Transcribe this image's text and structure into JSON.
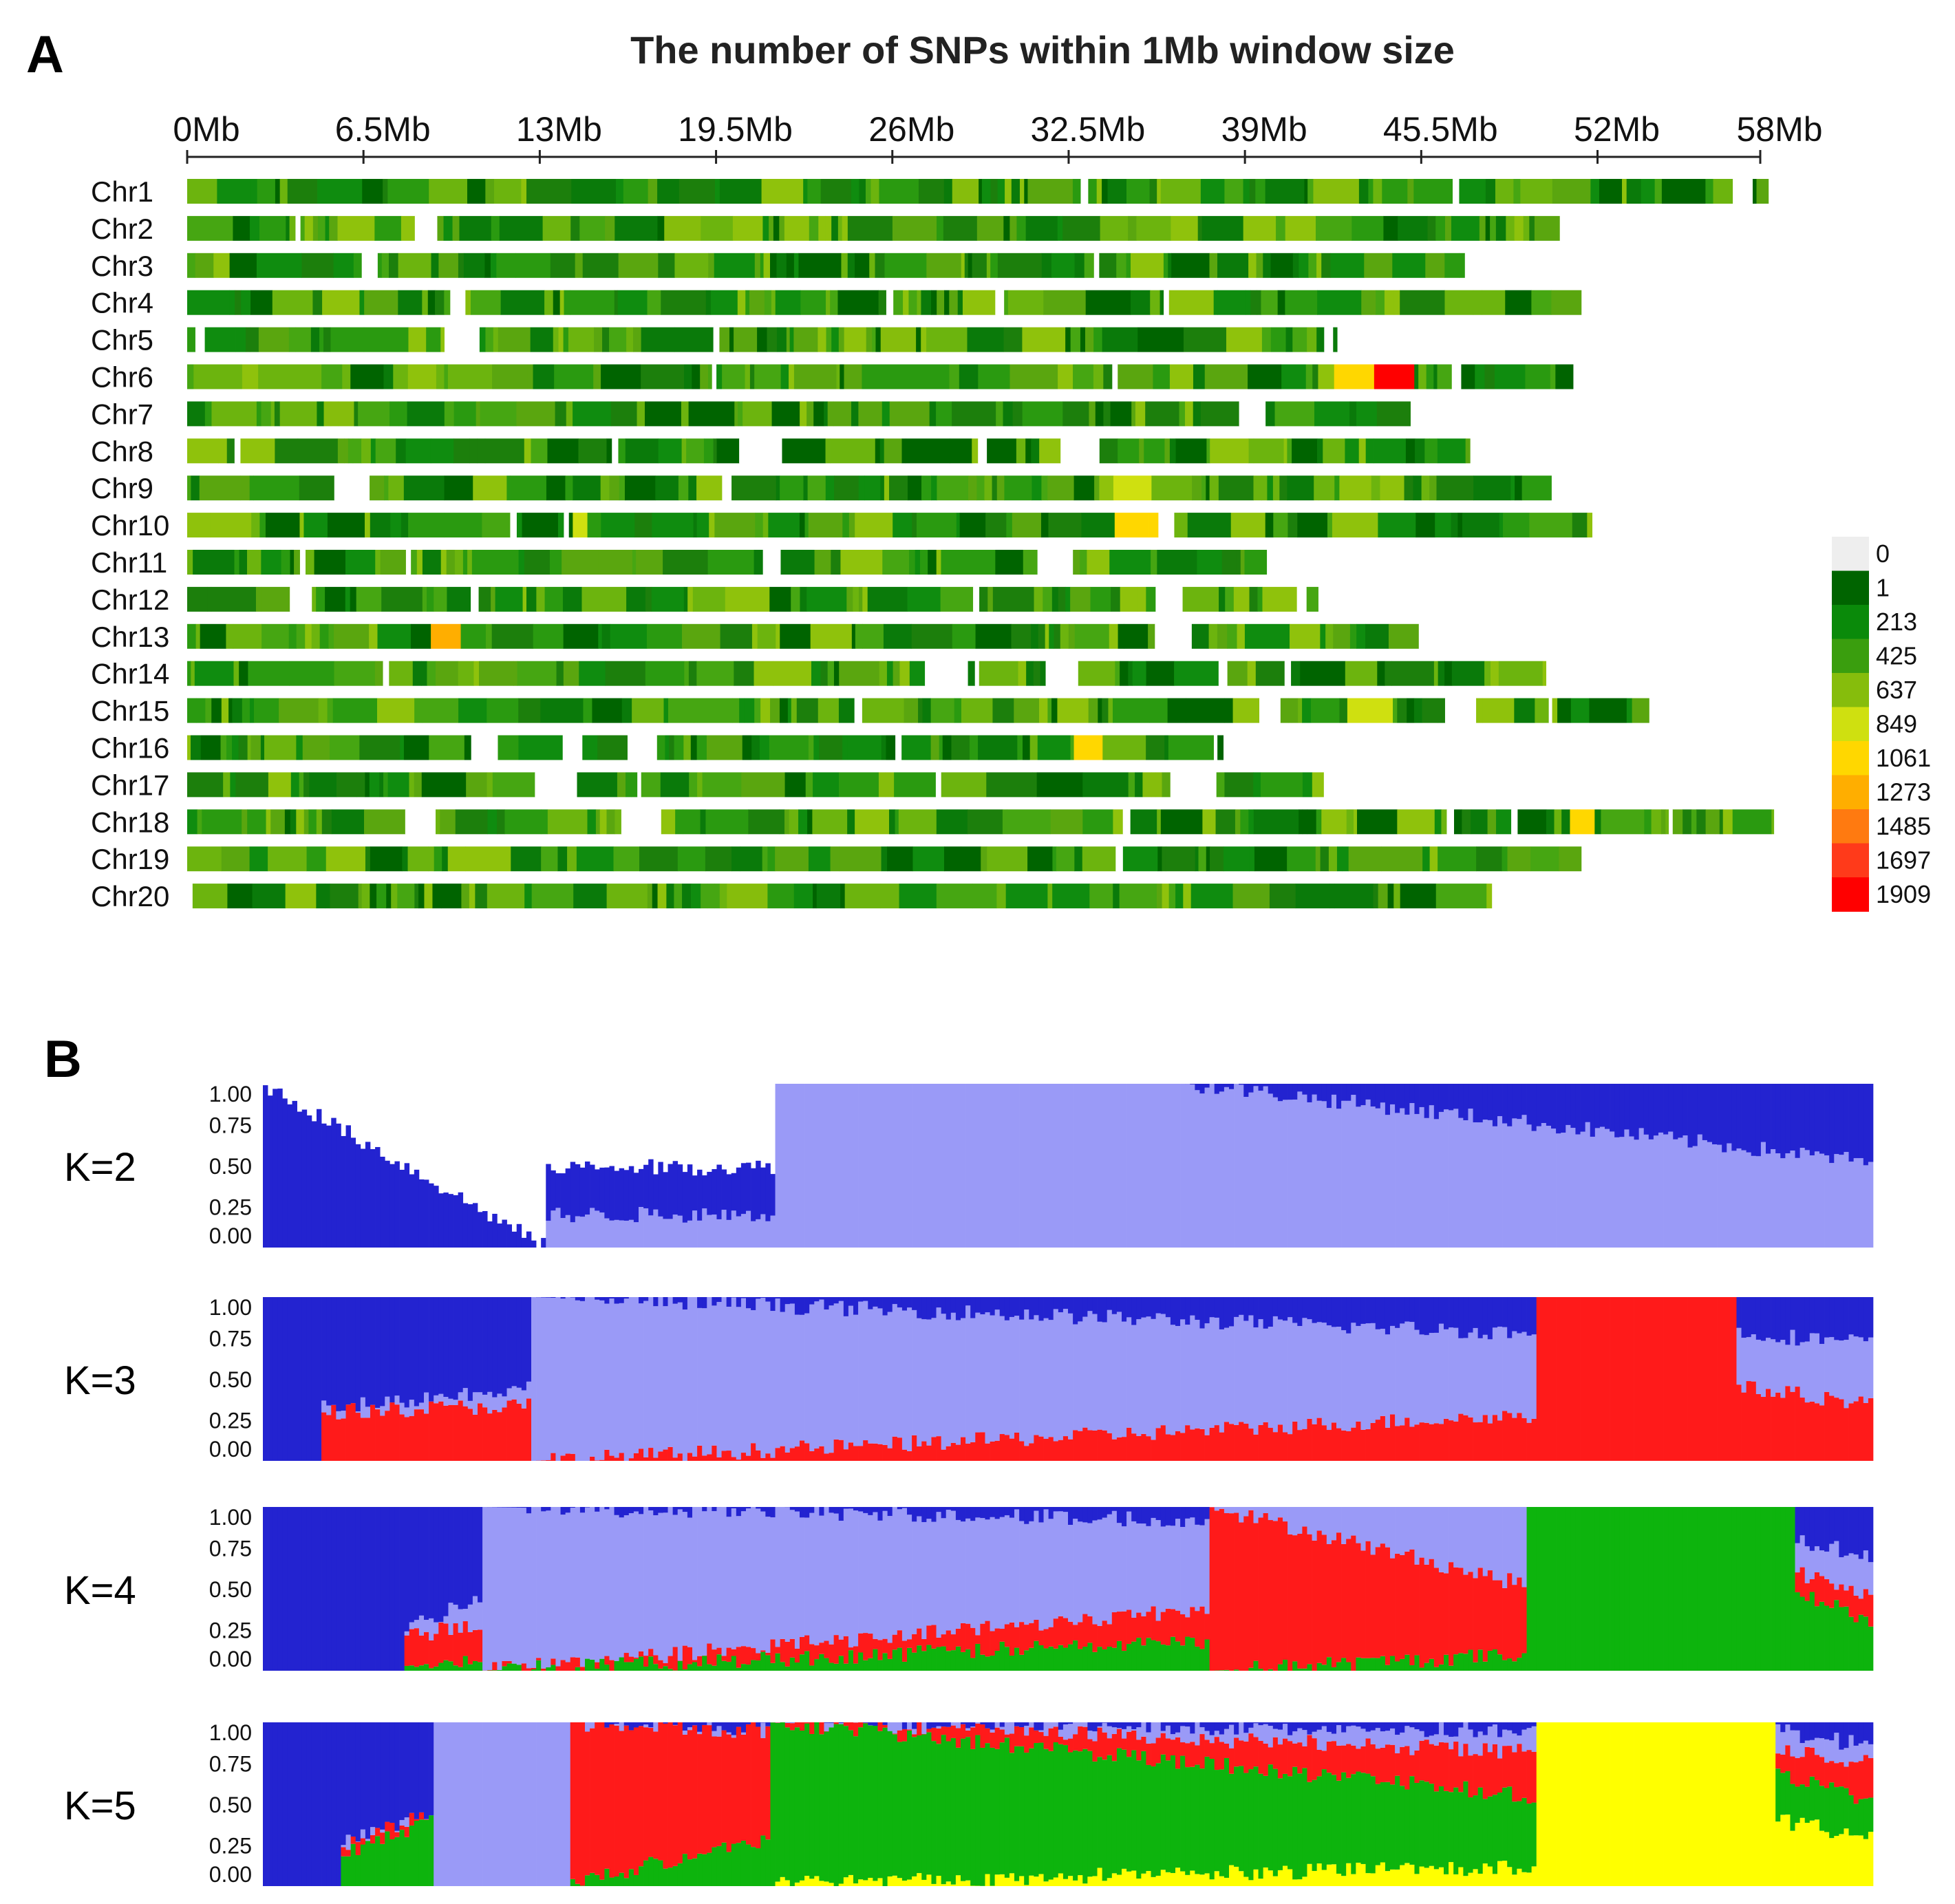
{
  "chart_data": [
    {
      "type": "heatmap",
      "panel": "A",
      "title": "The number of SNPs within 1Mb window size",
      "x_ticks": [
        "0Mb",
        "6.5Mb",
        "13Mb",
        "19.5Mb",
        "26Mb",
        "32.5Mb",
        "39Mb",
        "45.5Mb",
        "52Mb",
        "58Mb"
      ],
      "x_tick_values": [
        0,
        6.5,
        13,
        19.5,
        26,
        32.5,
        39,
        45.5,
        52,
        58
      ],
      "xlim": [
        0,
        58
      ],
      "chromosomes": [
        {
          "name": "Chr1",
          "length": 58.3,
          "hotspots": [
            {
              "start": 28.2,
              "end": 29.0,
              "value": 820
            },
            {
              "start": 41.5,
              "end": 42.4,
              "value": 760
            }
          ]
        },
        {
          "name": "Chr2",
          "length": 50.6,
          "hotspots": [
            {
              "start": 17.9,
              "end": 18.9,
              "value": 700
            }
          ]
        },
        {
          "name": "Chr3",
          "length": 47.1,
          "hotspots": []
        },
        {
          "name": "Chr4",
          "length": 51.4,
          "hotspots": [
            {
              "start": 10.0,
              "end": 10.9,
              "value": 780
            }
          ]
        },
        {
          "name": "Chr5",
          "length": 42.4,
          "hotspots": [
            {
              "start": 25.6,
              "end": 26.6,
              "value": 820
            }
          ]
        },
        {
          "name": "Chr6",
          "length": 51.1,
          "hotspots": [
            {
              "start": 42.1,
              "end": 43.1,
              "value": 1150
            },
            {
              "start": 44.0,
              "end": 45.0,
              "value": 1909
            },
            {
              "start": 38.6,
              "end": 39.5,
              "value": 820
            }
          ]
        },
        {
          "name": "Chr7",
          "length": 45.1,
          "hotspots": [
            {
              "start": 5.1,
              "end": 6.0,
              "value": 760
            }
          ]
        },
        {
          "name": "Chr8",
          "length": 47.3,
          "hotspots": []
        },
        {
          "name": "Chr9",
          "length": 50.3,
          "hotspots": [
            {
              "start": 34.8,
              "end": 35.7,
              "value": 960
            }
          ]
        },
        {
          "name": "Chr10",
          "length": 51.8,
          "hotspots": [
            {
              "start": 34.8,
              "end": 35.7,
              "value": 1150
            },
            {
              "start": 14.2,
              "end": 14.9,
              "value": 850
            }
          ]
        },
        {
          "name": "Chr11",
          "length": 39.8,
          "hotspots": []
        },
        {
          "name": "Chr12",
          "length": 41.7,
          "hotspots": []
        },
        {
          "name": "Chr13",
          "length": 45.4,
          "hotspots": [
            {
              "start": 8.9,
              "end": 9.8,
              "value": 1300
            }
          ]
        },
        {
          "name": "Chr14",
          "length": 50.1,
          "hotspots": []
        },
        {
          "name": "Chr15",
          "length": 53.9,
          "hotspots": [
            {
              "start": 43.5,
              "end": 44.5,
              "value": 900
            }
          ]
        },
        {
          "name": "Chr16",
          "length": 38.2,
          "hotspots": [
            {
              "start": 33.2,
              "end": 34.2,
              "value": 1061
            }
          ]
        },
        {
          "name": "Chr17",
          "length": 41.9,
          "hotspots": [
            {
              "start": 25.4,
              "end": 26.4,
              "value": 820
            },
            {
              "start": 35.1,
              "end": 36.0,
              "value": 800
            }
          ]
        },
        {
          "name": "Chr18",
          "length": 58.5,
          "hotspots": [
            {
              "start": 51.1,
              "end": 52.0,
              "value": 1100
            }
          ]
        },
        {
          "name": "Chr19",
          "length": 51.4,
          "hotspots": []
        },
        {
          "name": "Chr20",
          "length": 48.1,
          "hotspots": [
            {
              "start": 20.2,
              "end": 21.1,
              "value": 820
            }
          ]
        }
      ],
      "legend": {
        "labels": [
          "0",
          "1",
          "213",
          "425",
          "637",
          "849",
          "1061",
          "1273",
          "1485",
          "1697",
          "1909"
        ],
        "colors": [
          "#eeeeee",
          "#006400",
          "#0a8a0a",
          "#3a9e0e",
          "#86bd0c",
          "#cfe010",
          "#ffd700",
          "#ffae00",
          "#ff7a10",
          "#ff3a1a",
          "#ff0000"
        ]
      }
    },
    {
      "type": "bar",
      "panel": "B",
      "subtype": "stacked-admixture",
      "ylim": [
        0,
        1
      ],
      "y_ticks": [
        "1.00",
        "0.75",
        "0.50",
        "0.25",
        "0.00"
      ],
      "y_tick_values": [
        1,
        0.75,
        0.5,
        0.25,
        0
      ],
      "n_samples": 330,
      "cluster_colors": {
        "dark_blue": "#2323d0",
        "light_blue": "#9a9af7",
        "red": "#ff1a1a",
        "green": "#0db40d",
        "yellow": "#ffff00"
      },
      "series": [
        {
          "name": "K=2",
          "cluster_order": [
            "light_blue",
            "dark_blue"
          ],
          "segments": [
            {
              "from": 0.0,
              "to": 0.176,
              "profile": [
                [
                  0,
                  0
                ],
                [
                  1,
                  0
                ]
              ]
            },
            {
              "from": 0.176,
              "to": 0.318,
              "profile": [
                [
                  0.2,
                  0.2
                ],
                [
                  0.49,
                  0.49
                ]
              ]
            },
            {
              "from": 0.318,
              "to": 0.574,
              "profile": [
                [
                  1,
                  1
                ]
              ]
            },
            {
              "from": 0.574,
              "to": 1.0,
              "profile": [
                [
                  1,
                  0.52
                ]
              ]
            }
          ]
        },
        {
          "name": "K=3",
          "cluster_order": [
            "red",
            "light_blue",
            "dark_blue"
          ],
          "segments": [
            {
              "from": 0.0,
              "to": 0.035,
              "profile": [
                [
                  0,
                  0
                ],
                [
                  0,
                  0
                ]
              ]
            },
            {
              "from": 0.035,
              "to": 0.168,
              "profile": [
                [
                  0.3,
                  0.34
                ],
                [
                  0.32,
                  0.45
                ]
              ]
            },
            {
              "from": 0.168,
              "to": 0.79,
              "profile": [
                [
                  0.0,
                  0.28
                ],
                [
                  1.0,
                  0.78
                ]
              ]
            },
            {
              "from": 0.79,
              "to": 0.916,
              "profile": [
                [
                  1,
                  1
                ]
              ]
            },
            {
              "from": 0.916,
              "to": 1.0,
              "profile": [
                [
                  0.45,
                  0.35
                ],
                [
                  0.78,
                  0.72
                ]
              ]
            }
          ]
        },
        {
          "name": "K=4",
          "cluster_order": [
            "green",
            "red",
            "light_blue",
            "dark_blue"
          ],
          "segments": [
            {
              "from": 0.0,
              "to": 0.088,
              "profile": [
                [
                  0,
                  0
                ],
                [
                  0,
                  0
                ],
                [
                  0,
                  0
                ]
              ]
            },
            {
              "from": 0.088,
              "to": 0.136,
              "profile": [
                [
                  0.05,
                  0.05
                ],
                [
                  0.2,
                  0.3
                ],
                [
                  0.25,
                  0.45
                ]
              ]
            },
            {
              "from": 0.136,
              "to": 0.589,
              "profile": [
                [
                  0.0,
                  0.18
                ],
                [
                  0.0,
                  0.38
                ],
                [
                  1.0,
                  0.92
                ]
              ]
            },
            {
              "from": 0.589,
              "to": 0.785,
              "profile": [
                [
                  0.0,
                  0.1
                ],
                [
                  1.0,
                  0.52
                ],
                [
                  1,
                  1
                ]
              ]
            },
            {
              "from": 0.785,
              "to": 0.951,
              "profile": [
                [
                  1,
                  1
                ]
              ]
            },
            {
              "from": 0.951,
              "to": 1.0,
              "profile": [
                [
                  0.5,
                  0.3
                ],
                [
                  0.6,
                  0.45
                ],
                [
                  0.8,
                  0.7
                ]
              ]
            }
          ]
        },
        {
          "name": "K=5",
          "cluster_order": [
            "yellow",
            "green",
            "red",
            "light_blue",
            "dark_blue"
          ],
          "segments": [
            {
              "from": 0.0,
              "to": 0.047,
              "profile": [
                [
                  0,
                  0
                ],
                [
                  0,
                  0
                ],
                [
                  0,
                  0
                ],
                [
                  0,
                  0
                ]
              ]
            },
            {
              "from": 0.047,
              "to": 0.105,
              "profile": [
                [
                  0,
                  0
                ],
                [
                  0.18,
                  0.4
                ],
                [
                  0.25,
                  0.45
                ],
                [
                  0.25,
                  0.45
                ]
              ]
            },
            {
              "from": 0.105,
              "to": 0.192,
              "profile": [
                [
                  0,
                  0
                ],
                [
                  0,
                  0
                ],
                [
                  0,
                  0
                ],
                [
                  1,
                  1
                ]
              ]
            },
            {
              "from": 0.192,
              "to": 0.316,
              "profile": [
                [
                  0,
                  0
                ],
                [
                  0.02,
                  0.3
                ],
                [
                  0.98,
                  0.95
                ],
                [
                  0.98,
                  0.95
                ]
              ]
            },
            {
              "from": 0.316,
              "to": 0.79,
              "profile": [
                [
                  0.02,
                  0.12
                ],
                [
                  1.0,
                  0.55
                ],
                [
                  1.0,
                  0.82
                ],
                [
                  1.0,
                  0.95
                ]
              ]
            },
            {
              "from": 0.79,
              "to": 0.94,
              "profile": [
                [
                  1,
                  1
                ]
              ]
            },
            {
              "from": 0.94,
              "to": 1.0,
              "profile": [
                [
                  0.4,
                  0.3
                ],
                [
                  0.7,
                  0.5
                ],
                [
                  0.85,
                  0.75
                ],
                [
                  0.95,
                  0.85
                ]
              ]
            }
          ]
        }
      ]
    }
  ]
}
